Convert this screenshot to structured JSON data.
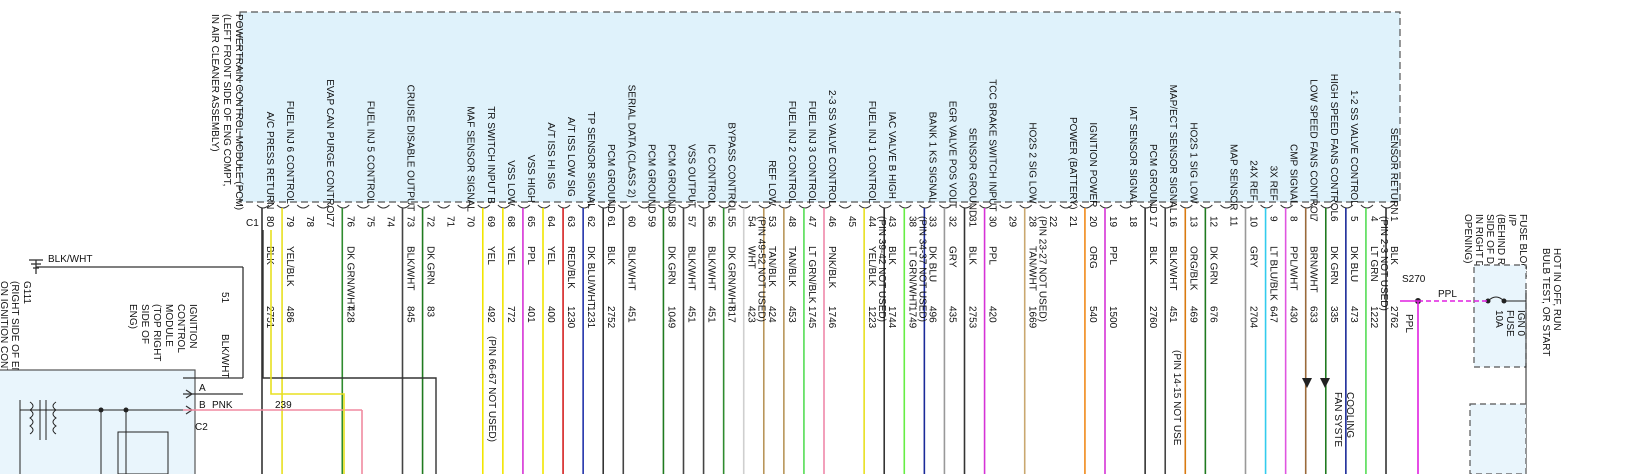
{
  "pcm": {
    "title_lines": [
      "POWERTRAIN CONTROL MODULE (PCM)",
      "(LEFT FRONT SIDE OF ENG COMPT,",
      "IN AIR CLEANER ASSEMBLY)"
    ],
    "connector": "C1",
    "pins": [
      {
        "num": "80",
        "func": "A/C PRESS RETURN",
        "color": "BLK",
        "circuit": "2751",
        "wire": "#333333"
      },
      {
        "num": "79",
        "func": "FUEL INJ 6 CONTROL",
        "color": "YEL/BLK",
        "circuit": "486",
        "wire": "#e8e020"
      },
      {
        "num": "78",
        "func": "",
        "color": "",
        "circuit": "",
        "wire": ""
      },
      {
        "num": "77",
        "func": "EVAP CAN PURGE CONTROL",
        "color": "",
        "circuit": "",
        "wire": ""
      },
      {
        "num": "76",
        "func": "",
        "color": "DK GRN/WHT",
        "circuit": "428",
        "wire": "#2e8b2e"
      },
      {
        "num": "75",
        "func": "FUEL INJ 5 CONTROL",
        "color": "",
        "circuit": "",
        "wire": ""
      },
      {
        "num": "74",
        "func": "",
        "color": "",
        "circuit": "",
        "wire": ""
      },
      {
        "num": "73",
        "func": "CRUISE DISABLE OUTPUT",
        "color": "BLK/WHT",
        "circuit": "845",
        "wire": "#444444"
      },
      {
        "num": "72",
        "func": "",
        "color": "DK GRN",
        "circuit": "83",
        "wire": "#1f7a1f"
      },
      {
        "num": "71",
        "func": "",
        "color": "",
        "circuit": "",
        "wire": ""
      },
      {
        "num": "70",
        "func": "MAF SENSOR SIGNAL",
        "color": "",
        "circuit": "",
        "wire": ""
      },
      {
        "num": "69",
        "func": "TR SWITCH INPUT B",
        "color": "YEL",
        "circuit": "492",
        "wire": "#f2e600"
      },
      {
        "num": "68",
        "func": "VSS LOW",
        "color": "YEL",
        "circuit": "772",
        "wire": "#f2e600"
      },
      {
        "num": "65",
        "func": "VSS HIGH",
        "color": "PPL",
        "circuit": "401",
        "wire": "#d633d6"
      },
      {
        "num": "64",
        "func": "A/T ISS HI SIG",
        "color": "YEL",
        "circuit": "400",
        "wire": "#f2e600"
      },
      {
        "num": "63",
        "func": "A/T ISS LOW SIG",
        "color": "RED/BLK",
        "circuit": "1230",
        "wire": "#d42020"
      },
      {
        "num": "62",
        "func": "TP SENSOR SIGNAL",
        "color": "DK BLU/WHT",
        "circuit": "1231",
        "wire": "#2233aa"
      },
      {
        "num": "61",
        "func": "PCM GROUND",
        "color": "BLK",
        "circuit": "2752",
        "wire": "#333333"
      },
      {
        "num": "60",
        "func": "SERIAL DATA (CLASS 2)",
        "color": "BLK/WHT",
        "circuit": "451",
        "wire": "#444444"
      },
      {
        "num": "59",
        "func": "PCM GROUND",
        "color": "",
        "circuit": "",
        "wire": ""
      },
      {
        "num": "58",
        "func": "PCM GROUND",
        "color": "DK GRN",
        "circuit": "1049",
        "wire": "#1f7a1f"
      },
      {
        "num": "57",
        "func": "VSS OUTPUT",
        "color": "BLK/WHT",
        "circuit": "451",
        "wire": "#444444"
      },
      {
        "num": "56",
        "func": "IC CONTROL",
        "color": "BLK/WHT",
        "circuit": "451",
        "wire": "#444444"
      },
      {
        "num": "55",
        "func": "BYPASS CONTROL",
        "color": "DK GRN/WHT",
        "circuit": "817",
        "wire": "#2e8b2e"
      },
      {
        "num": "54",
        "func": "",
        "color": "WHT",
        "circuit": "423",
        "wire": "#cfcfcf"
      },
      {
        "num": "53",
        "func": "REF LOW",
        "color": "TAN/BLK",
        "circuit": "424",
        "wire": "#b8955a"
      },
      {
        "num": "48",
        "func": "FUEL INJ 2 CONTROL",
        "color": "TAN/BLK",
        "circuit": "453",
        "wire": "#b8955a"
      },
      {
        "num": "47",
        "func": "FUEL INJ 3 CONTROL",
        "color": "LT GRN/BLK",
        "circuit": "1745",
        "wire": "#55dd55"
      },
      {
        "num": "46",
        "func": "2-3 SS VALVE CONTROL",
        "color": "PNK/BLK",
        "circuit": "1746",
        "wire": "#ee88aa"
      },
      {
        "num": "45",
        "func": "",
        "color": "",
        "circuit": "",
        "wire": ""
      },
      {
        "num": "44",
        "func": "FUEL INJ 1 CONTROL",
        "color": "YEL/BLK",
        "circuit": "1223",
        "wire": "#e8e020"
      },
      {
        "num": "43",
        "func": "IAC VALVE B HIGH",
        "color": "BLK",
        "circuit": "1744",
        "wire": "#333333"
      },
      {
        "num": "38",
        "func": "",
        "color": "LT GRN/WHT",
        "circuit": "1749",
        "wire": "#66ee44"
      },
      {
        "num": "33",
        "func": "BANK 1 KS SIGNAL",
        "color": "DK BLU",
        "circuit": "496",
        "wire": "#1a2a99"
      },
      {
        "num": "32",
        "func": "EGR VALVE POS VOLT",
        "color": "GRY",
        "circuit": "435",
        "wire": "#999999"
      },
      {
        "num": "31",
        "func": "SENSOR GROUND",
        "color": "BLK",
        "circuit": "2753",
        "wire": "#333333"
      },
      {
        "num": "30",
        "func": "TCC BRAKE SWITCH INPUT",
        "color": "PPL",
        "circuit": "420",
        "wire": "#d633d6"
      },
      {
        "num": "29",
        "func": "",
        "color": "",
        "circuit": "",
        "wire": ""
      },
      {
        "num": "28",
        "func": "HO2S 2 SIG LOW",
        "color": "TAN/WHT",
        "circuit": "1669",
        "wire": "#c9a870"
      },
      {
        "num": "22",
        "func": "",
        "color": "",
        "circuit": "",
        "wire": ""
      },
      {
        "num": "21",
        "func": "POWER (BATTERY)",
        "color": "",
        "circuit": "",
        "wire": ""
      },
      {
        "num": "20",
        "func": "IGNITION POWER",
        "color": "ORG",
        "circuit": "540",
        "wire": "#f08a1a"
      },
      {
        "num": "19",
        "func": "",
        "color": "PPL",
        "circuit": "1500",
        "wire": "#d633d6"
      },
      {
        "num": "18",
        "func": "IAT SENSOR SIGNAL",
        "color": "",
        "circuit": "",
        "wire": ""
      },
      {
        "num": "17",
        "func": "PCM GROUND",
        "color": "BLK",
        "circuit": "2760",
        "wire": "#333333"
      },
      {
        "num": "16",
        "func": "MAP/ECT SENSOR SIGNAL",
        "color": "BLK/WHT",
        "circuit": "451",
        "wire": "#444444"
      },
      {
        "num": "13",
        "func": "HO2S 1 SIG LOW",
        "color": "ORG/BLK",
        "circuit": "469",
        "wire": "#d97a10"
      },
      {
        "num": "12",
        "func": "",
        "color": "DK GRN",
        "circuit": "676",
        "wire": "#1f7a1f"
      },
      {
        "num": "11",
        "func": "MAP SENSOR",
        "color": "",
        "circuit": "",
        "wire": ""
      },
      {
        "num": "10",
        "func": "24X REF",
        "color": "GRY",
        "circuit": "2704",
        "wire": "#999999"
      },
      {
        "num": "9",
        "func": "3X REF",
        "color": "LT BLU/BLK",
        "circuit": "647",
        "wire": "#33ccee"
      },
      {
        "num": "8",
        "func": "CMP SIGNAL",
        "color": "PPL/WHT",
        "circuit": "430",
        "wire": "#e055e0"
      },
      {
        "num": "7",
        "func": "LOW SPEED FANS CONTROL",
        "color": "BRN/WHT",
        "circuit": "633",
        "wire": "#9a6a3a"
      },
      {
        "num": "6",
        "func": "HIGH SPEED FANS CONTROL",
        "color": "DK GRN",
        "circuit": "335",
        "wire": "#1f7a1f"
      },
      {
        "num": "5",
        "func": "1-2 SS VALVE CONTROL",
        "color": "DK BLU",
        "circuit": "473",
        "wire": "#1a2a99"
      },
      {
        "num": "4",
        "func": "",
        "color": "LT GRN",
        "circuit": "1222",
        "wire": "#55dd55"
      },
      {
        "num": "1",
        "func": "SENSOR RETURN",
        "color": "BLK",
        "circuit": "2762",
        "wire": "#333333"
      }
    ],
    "notes": [
      {
        "after": "44",
        "text": "(PIN 39-42 NOT USED)"
      },
      {
        "after": "38",
        "text": "(PIN 34-37 NOT USED)"
      },
      {
        "after": "28",
        "text": "(PIN 23-27 NOT USED)"
      },
      {
        "after": "54",
        "text": "(PIN 49-52 NOT USED)"
      },
      {
        "after": "4",
        "text": "(PIN 2-3 NOT USED)"
      }
    ],
    "bottom_notes": {
      "pin_66_67": "(PIN 66-67 NOT USED)",
      "pin_14_15": "(PIN 14-15 NOT USE"
    }
  },
  "ground": {
    "wire": "BLK/WHT",
    "id": "G111",
    "lines": [
      "(RIGHT SIDE OF ENGINE,",
      "ON IGNITION CONTROL"
    ]
  },
  "icm": {
    "lines": [
      "IGNITION",
      "CONTROL",
      "MODULE",
      "(TOP RIGHT",
      "SIDE OF",
      "ENG)"
    ],
    "pin51": "51",
    "pin51_color": "BLK/WHT",
    "pin_a": "A",
    "pin_b": "B",
    "pin_b_color": "PNK",
    "pin_b_circuit": "239",
    "connector": "C2"
  },
  "fuse_block": {
    "lines": [
      "FUSE BLOCK",
      "I/P",
      "(BEHIND RIGHT",
      "SIDE OF DASH,",
      "IN RIGHT DOOR",
      "OPENING)"
    ],
    "hot_lines": [
      "HOT IN OFF, RUN",
      "BULB TEST, OR START"
    ],
    "fuse_lines": [
      "IGN 0",
      "FUSE",
      "10A"
    ],
    "splice": "S270",
    "wire_color": "PPL",
    "wire_color_down": "PPL"
  },
  "cooling": {
    "lines": [
      "COOLING",
      "FAN SYSTE"
    ]
  }
}
